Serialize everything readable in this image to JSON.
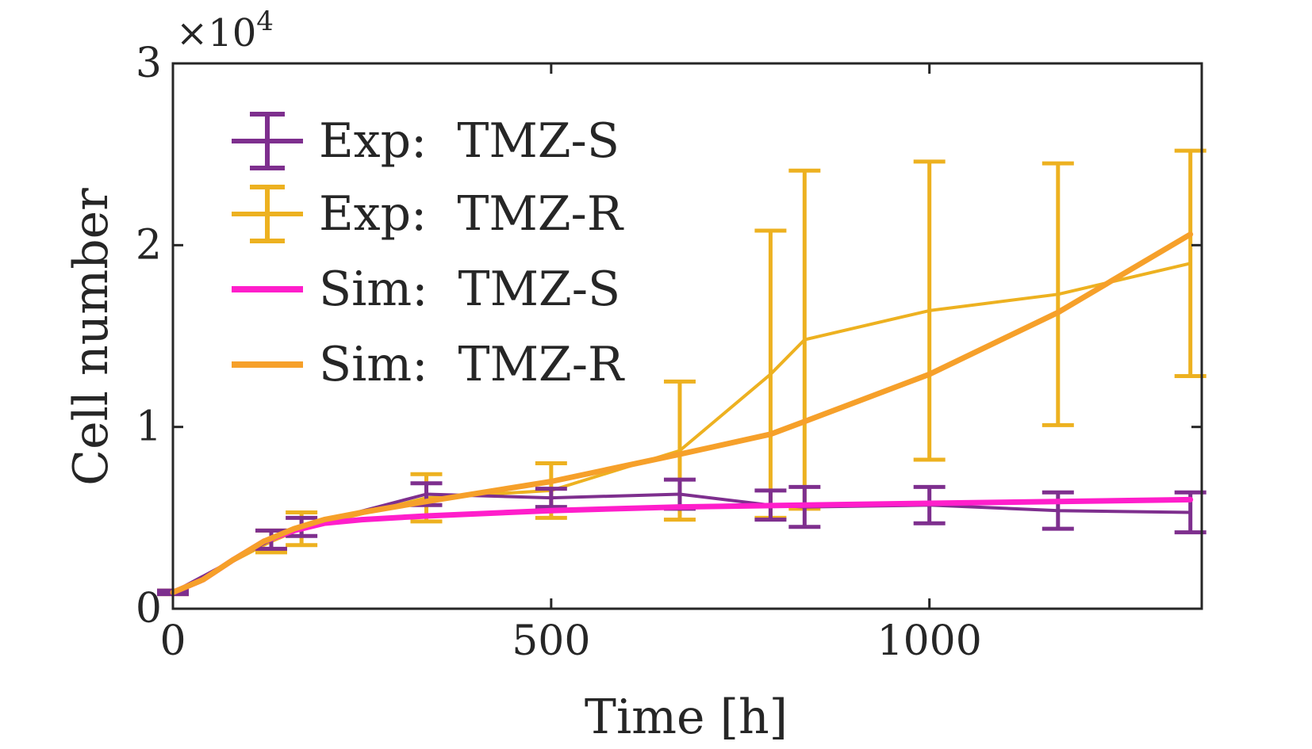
{
  "chart_data": {
    "type": "line",
    "title": "",
    "xlabel": "Time [h]",
    "ylabel": "Cell number",
    "exponent_label": "×10",
    "exponent_power": "4",
    "xlim": [
      0,
      1360
    ],
    "ylim": [
      0,
      30000
    ],
    "xticks": [
      0,
      500,
      1000
    ],
    "xtick_labels": [
      "0",
      "500",
      "1000"
    ],
    "yticks": [
      0,
      10000,
      20000,
      30000
    ],
    "ytick_labels": [
      "0",
      "1",
      "2",
      "3"
    ],
    "grid": false,
    "legend_position": "top-left",
    "series": [
      {
        "name": "Exp:  TMZ-S",
        "kind": "errorbar",
        "color": "#7E2F8E",
        "x": [
          0,
          130,
          170,
          335,
          500,
          670,
          790,
          835,
          1000,
          1170,
          1345
        ],
        "y": [
          900,
          3800,
          4500,
          6300,
          6100,
          6300,
          5700,
          5600,
          5700,
          5400,
          5300
        ],
        "err": [
          100,
          500,
          500,
          600,
          500,
          800,
          800,
          1100,
          1000,
          1000,
          1100
        ]
      },
      {
        "name": "Exp:  TMZ-R",
        "kind": "errorbar",
        "color": "#EDB120",
        "x": [
          0,
          130,
          170,
          335,
          500,
          670,
          790,
          835,
          1000,
          1170,
          1345
        ],
        "y": [
          900,
          3700,
          4400,
          6100,
          6500,
          8700,
          12900,
          14800,
          16400,
          17300,
          19000
        ],
        "err": [
          100,
          600,
          900,
          1300,
          1500,
          3800,
          7900,
          9300,
          8200,
          7200,
          6200
        ]
      },
      {
        "name": "Sim:  TMZ-S",
        "kind": "line",
        "color": "#FF1ECB",
        "x": [
          0,
          40,
          80,
          120,
          160,
          200,
          250,
          335,
          500,
          670,
          835,
          1000,
          1170,
          1345
        ],
        "y": [
          900,
          1600,
          2700,
          3700,
          4300,
          4700,
          4900,
          5100,
          5400,
          5600,
          5700,
          5800,
          5900,
          6000
        ]
      },
      {
        "name": "Sim:  TMZ-R",
        "kind": "line",
        "color": "#F6A02A",
        "x": [
          0,
          40,
          80,
          120,
          160,
          200,
          250,
          335,
          500,
          670,
          790,
          835,
          1000,
          1170,
          1345
        ],
        "y": [
          900,
          1600,
          2700,
          3700,
          4400,
          4900,
          5300,
          5900,
          7000,
          8500,
          9600,
          10300,
          12900,
          16300,
          20600
        ]
      }
    ]
  }
}
